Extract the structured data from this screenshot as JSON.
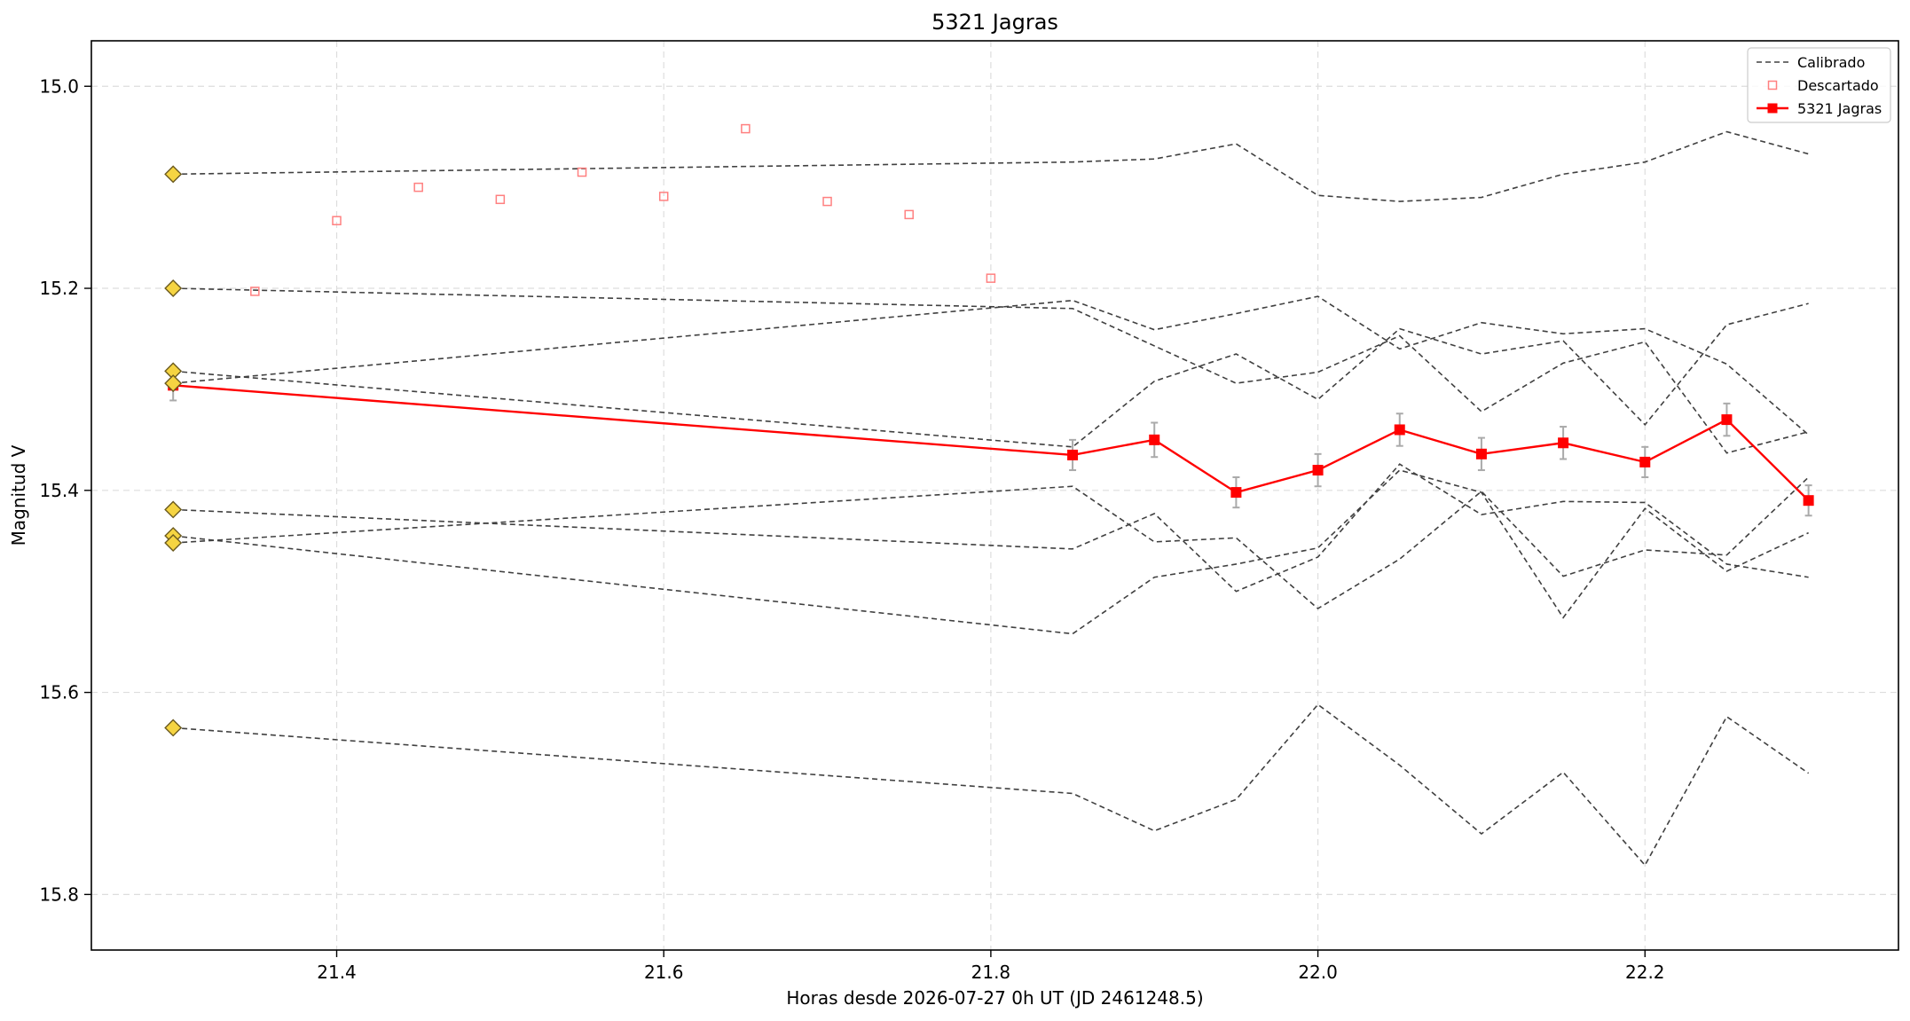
{
  "chart_data": {
    "type": "line",
    "title": "5321 Jagras",
    "xlabel": "Horas desde 2026-07-27 0h UT (JD 2461248.5)",
    "ylabel": "Magnitud V",
    "xlim": [
      21.25,
      22.355
    ],
    "ylim": [
      15.955,
      15.855
    ],
    "y_inverted": true,
    "grid": true,
    "legend_position": "top-right",
    "xticks": [
      21.4,
      21.6,
      21.8,
      22.0,
      22.2
    ],
    "xtick_labels": [
      "21.4",
      "21.6",
      "21.8",
      "22.0",
      "22.2"
    ],
    "yticks": [
      15.0,
      15.2,
      15.4,
      15.6,
      15.8
    ],
    "ytick_labels": [
      "15.0",
      "15.2",
      "15.4",
      "15.6",
      "15.8"
    ],
    "legend": [
      {
        "label": "Calibrado",
        "style": "dashed-line"
      },
      {
        "label": "Descartado",
        "style": "open-square"
      },
      {
        "label": "5321 Jagras",
        "style": "line-square"
      }
    ],
    "colors": {
      "target": "#ff0000",
      "calibrated": "#404040",
      "discarded": "#ff8080",
      "comparison_star": "#f5d442",
      "errorbar": "#aaaaaa",
      "grid": "#dddddd"
    },
    "calibrated_x": [
      21.3,
      21.85,
      21.9,
      21.95,
      22.0,
      22.05,
      22.1,
      22.15,
      22.2,
      22.25,
      22.3
    ],
    "calibrated_series": [
      [
        15.087,
        15.075,
        15.072,
        15.057,
        15.108,
        15.114,
        15.11,
        15.087,
        15.075,
        15.045,
        15.067
      ],
      [
        15.2,
        15.22,
        15.257,
        15.294,
        15.283,
        15.247,
        15.322,
        15.274,
        15.253,
        15.363,
        15.342
      ],
      [
        15.294,
        15.212,
        15.241,
        15.225,
        15.208,
        15.26,
        15.234,
        15.245,
        15.24,
        15.275,
        15.345
      ],
      [
        15.282,
        15.357,
        15.292,
        15.265,
        15.31,
        15.24,
        15.265,
        15.252,
        15.335,
        15.236,
        15.215
      ],
      [
        15.419,
        15.458,
        15.423,
        15.5,
        15.466,
        15.374,
        15.424,
        15.411,
        15.412,
        15.473,
        15.486
      ],
      [
        15.445,
        15.542,
        15.486,
        15.473,
        15.457,
        15.38,
        15.402,
        15.526,
        15.418,
        15.48,
        15.442
      ],
      [
        15.452,
        15.396,
        15.451,
        15.447,
        15.517,
        15.468,
        15.401,
        15.485,
        15.459,
        15.464,
        15.387
      ],
      [
        15.635,
        15.7,
        15.737,
        15.706,
        15.612,
        15.672,
        15.74,
        15.679,
        15.771,
        15.624,
        15.68
      ]
    ],
    "target_series": {
      "name": "5321 Jagras",
      "x": [
        21.3,
        21.85,
        21.9,
        21.95,
        22.0,
        22.05,
        22.1,
        22.15,
        22.2,
        22.25,
        22.3
      ],
      "y": [
        15.296,
        15.365,
        15.35,
        15.402,
        15.38,
        15.34,
        15.364,
        15.353,
        15.372,
        15.33,
        15.41
      ],
      "err": [
        0.015,
        0.015,
        0.017,
        0.015,
        0.016,
        0.016,
        0.016,
        0.016,
        0.015,
        0.016,
        0.015
      ]
    },
    "discarded": {
      "x": [
        21.35,
        21.4,
        21.45,
        21.5,
        21.55,
        21.6,
        21.65,
        21.7,
        21.75,
        21.8
      ],
      "y": [
        15.203,
        15.133,
        15.1,
        15.112,
        15.085,
        15.109,
        15.042,
        15.114,
        15.127,
        15.19
      ]
    },
    "comparison_stars": {
      "x": 21.3,
      "y": [
        15.087,
        15.2,
        15.282,
        15.294,
        15.419,
        15.445,
        15.452,
        15.635
      ]
    }
  }
}
